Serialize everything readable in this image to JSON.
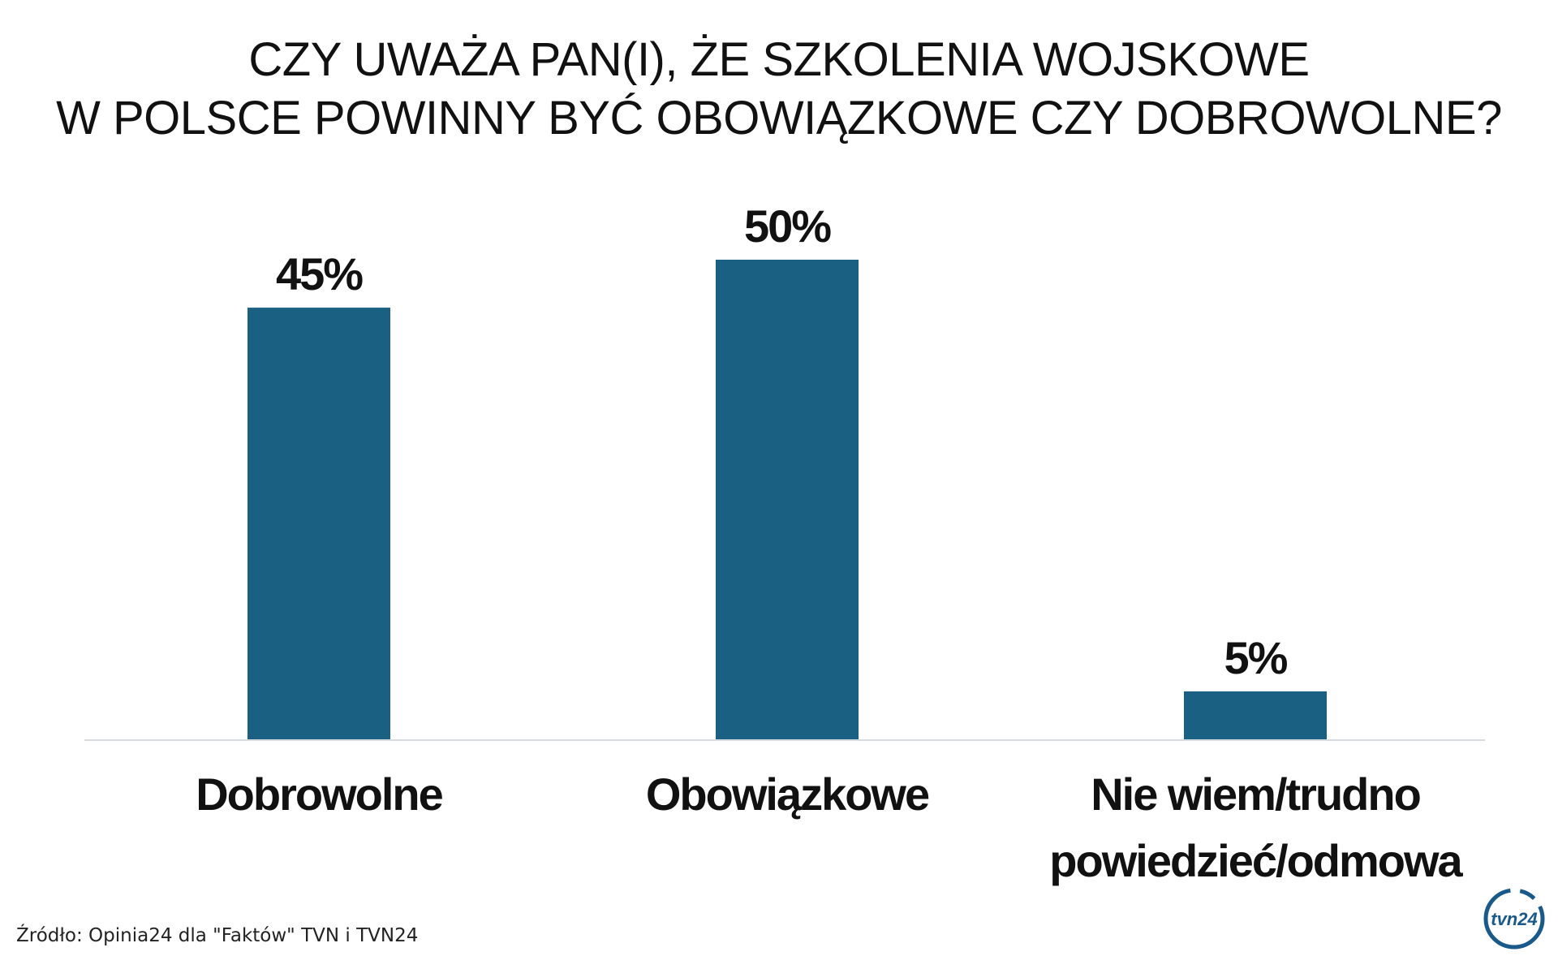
{
  "title": {
    "line1": "CZY UWAŻA PAN(I), ŻE SZKOLENIA WOJSKOWE",
    "line2": "W POLSCE POWINNY BYĆ OBOWIĄZKOWE CZY DOBROWOLNE?"
  },
  "source": "Źródło: Opinia24 dla \"Faktów\" TVN i TVN24",
  "logo_text": "tvn24",
  "colors": {
    "bar": "#1a6083",
    "axis": "#d6dbe0",
    "logo": "#1a5a8a"
  },
  "chart_data": {
    "type": "bar",
    "categories": [
      [
        "Dobrowolne"
      ],
      [
        "Obowiązkowe"
      ],
      [
        "Nie wiem/trudno",
        "powiedzieć/odmowa"
      ]
    ],
    "values": [
      45,
      50,
      5
    ],
    "value_labels": [
      "45%",
      "50%",
      "5%"
    ],
    "ylim": [
      0,
      50
    ],
    "grid": false,
    "legend": "none"
  }
}
